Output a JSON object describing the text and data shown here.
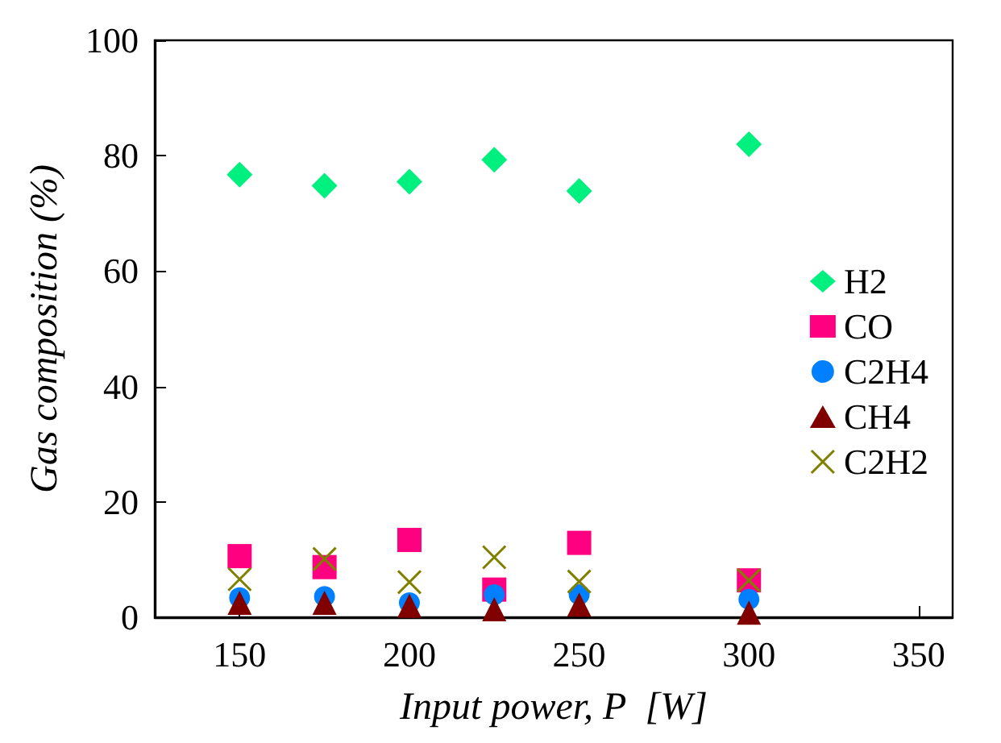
{
  "chart_data": {
    "type": "scatter",
    "xlabel": "Input power, P  [W]",
    "ylabel": "Gas composition (%)",
    "x": [
      150,
      175,
      200,
      225,
      250,
      300
    ],
    "series": [
      {
        "name": "H2",
        "color": "#00f080",
        "marker": "diamond",
        "values": [
          76.7,
          74.8,
          75.5,
          79.3,
          73.9,
          82.0
        ]
      },
      {
        "name": "CO",
        "color": "#ff0080",
        "marker": "square",
        "values": [
          10.6,
          8.7,
          13.4,
          4.8,
          12.9,
          6.4
        ]
      },
      {
        "name": "C2H4",
        "color": "#0080ff",
        "marker": "circle",
        "values": [
          3.4,
          3.6,
          2.5,
          3.9,
          3.9,
          3.1
        ]
      },
      {
        "name": "CH4",
        "color": "#800000",
        "marker": "triangle",
        "values": [
          2.5,
          2.5,
          2.0,
          1.4,
          2.2,
          0.8
        ]
      },
      {
        "name": "C2H2",
        "color": "#808000",
        "marker": "cross",
        "values": [
          6.6,
          10.1,
          6.1,
          10.4,
          6.2,
          6.4
        ]
      }
    ],
    "xlim": [
      125,
      360
    ],
    "xticks": [
      150,
      200,
      250,
      300,
      350
    ],
    "ylim": [
      0,
      100
    ],
    "yticks": [
      0,
      20,
      40,
      60,
      80,
      100
    ],
    "grid": false,
    "legend": "right"
  }
}
